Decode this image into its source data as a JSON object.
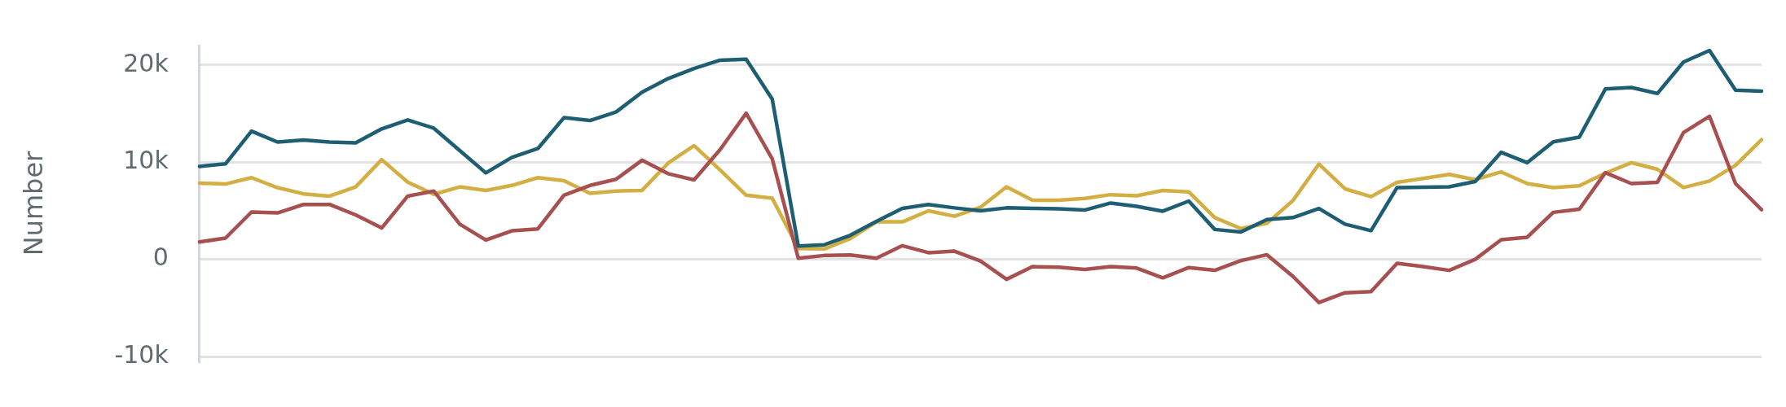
{
  "chart_data": {
    "type": "line",
    "ylabel": "Number",
    "categories": [
      null,
      null,
      null,
      null,
      null,
      null,
      null,
      null,
      null,
      null,
      null,
      null,
      null,
      null,
      null,
      null,
      null,
      null,
      null,
      null,
      null,
      null,
      null,
      null,
      null,
      null,
      null,
      null,
      null,
      null,
      null,
      null,
      null,
      null,
      null,
      null,
      null,
      null,
      null,
      null,
      null,
      null,
      null,
      null,
      null,
      null,
      null,
      null,
      null,
      null,
      null,
      null,
      null,
      null,
      null,
      null,
      null,
      null,
      null,
      null,
      null
    ],
    "series": [
      {
        "color": "#1d5e73",
        "values": [
          9570,
          9830,
          13200,
          12070,
          12280,
          12070,
          11990,
          13430,
          14350,
          13500,
          11200,
          8900,
          10490,
          11410,
          14580,
          14290,
          15160,
          17200,
          18600,
          19650,
          20500,
          20600,
          16500,
          1380,
          1500,
          2480,
          3900,
          5250,
          5650,
          5300,
          5000,
          5300,
          5250,
          5200,
          5070,
          5800,
          5450,
          4960,
          6000,
          3080,
          2820,
          4090,
          4300,
          5240,
          3630,
          2960,
          7390,
          7420,
          7470,
          8010,
          11020,
          9950,
          12100,
          12580,
          17530,
          17690,
          17070,
          20300,
          21500,
          17420,
          17310
        ]
      },
      {
        "color": "#a84f50",
        "values": [
          1790,
          2190,
          4870,
          4780,
          5650,
          5650,
          4580,
          3230,
          6510,
          7030,
          3630,
          1990,
          2940,
          3140,
          6600,
          7610,
          8240,
          10200,
          8820,
          8180,
          11300,
          15040,
          10350,
          120,
          400,
          460,
          120,
          1410,
          690,
          840,
          -170,
          -2050,
          -750,
          -810,
          -1040,
          -750,
          -890,
          -1900,
          -840,
          -1120,
          -130,
          480,
          -1750,
          -4440,
          -3440,
          -3310,
          -400,
          -750,
          -1130,
          0,
          2020,
          2280,
          4840,
          5160,
          8920,
          7800,
          7930,
          13040,
          14730,
          7800,
          5110
        ]
      },
      {
        "color": "#d3ae42",
        "values": [
          7840,
          7750,
          8410,
          7380,
          6740,
          6510,
          7460,
          10260,
          7950,
          6690,
          7460,
          7090,
          7610,
          8410,
          8100,
          6800,
          7030,
          7100,
          9900,
          11700,
          9200,
          6600,
          6300,
          1120,
          1070,
          2130,
          3860,
          3860,
          5000,
          4440,
          5360,
          7460,
          6080,
          6080,
          6280,
          6660,
          6540,
          7090,
          6950,
          4300,
          3170,
          3710,
          6050,
          9810,
          7260,
          6450,
          7930,
          8330,
          8740,
          8200,
          9000,
          7800,
          7390,
          7580,
          8870,
          9950,
          9270,
          7390,
          8060,
          9680,
          12310
        ]
      }
    ],
    "ylim": [
      -10500,
      22000
    ],
    "yticks": [
      {
        "value": -10000,
        "label": "-10k"
      },
      {
        "value": 0,
        "label": "0"
      },
      {
        "value": 10000,
        "label": "10k"
      },
      {
        "value": 20000,
        "label": "20k"
      }
    ],
    "grid": "y",
    "legend": false,
    "marker": "none",
    "line_style": "solid"
  }
}
